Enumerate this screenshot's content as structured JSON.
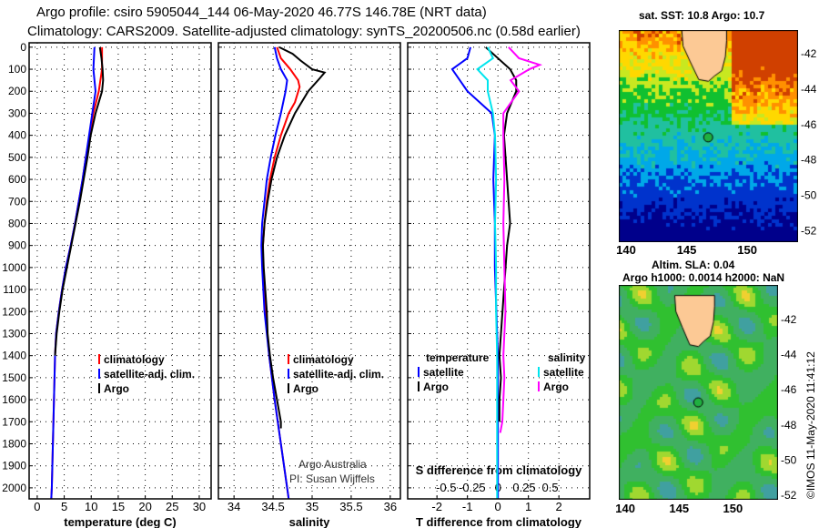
{
  "title_line1": "Argo profile: csiro 5905044_144 06-May-2020 46.77S 146.78E (NRT data)",
  "title_line2": "Climatology: CARS2009. Satellite-adjusted climatology: synTS_20200506.nc (0.58d earlier)",
  "credit_line1": "Argo Australia",
  "credit_line2": "PI: Susan Wijffels",
  "imos_stamp": "©IMOS 11-May-2020 11:41:12",
  "colors": {
    "climatology": "#ff0000",
    "satellite": "#0000ff",
    "argo": "#000000",
    "sal_satellite": "#00e5ee",
    "sal_argo": "#ff00ff",
    "land": "#fcc995"
  },
  "chart_data": [
    {
      "type": "line",
      "id": "temperature",
      "xlabel": "temperature (deg C)",
      "ylabel": "depth",
      "xlim": [
        -1.5,
        32.2
      ],
      "ylim": [
        2050,
        -20
      ],
      "xticks": [
        0,
        5,
        10,
        15,
        20,
        25,
        30
      ],
      "yticks": [
        0,
        100,
        200,
        300,
        400,
        500,
        600,
        700,
        800,
        900,
        1000,
        1100,
        1200,
        1300,
        1400,
        1500,
        1600,
        1700,
        1800,
        1900,
        2000
      ],
      "legend": [
        "climatology",
        "satellite-adj. clim.",
        "Argo"
      ],
      "series": [
        {
          "name": "climatology",
          "color": "#ff0000",
          "depth": [
            0,
            100,
            200,
            300,
            400,
            500,
            600,
            700,
            800,
            900,
            1000,
            1100,
            1200,
            1300,
            1400,
            1600,
            1800,
            2000,
            2050
          ],
          "values": [
            12,
            12,
            11.4,
            10.4,
            9.7,
            9.0,
            8.4,
            7.7,
            7.0,
            6.2,
            5.3,
            4.6,
            4.0,
            3.5,
            3.3,
            3.1,
            2.9,
            2.7,
            2.6
          ]
        },
        {
          "name": "satellite-adj. clim.",
          "color": "#0000ff",
          "depth": [
            0,
            100,
            150,
            200,
            300,
            400,
            500,
            600,
            700,
            800,
            900,
            1000,
            1100,
            1200,
            1300,
            1400,
            1600,
            1800,
            2000,
            2050
          ],
          "values": [
            10.6,
            10.4,
            10.6,
            10.8,
            10.2,
            9.6,
            9.0,
            8.4,
            7.7,
            7.0,
            6.2,
            5.3,
            4.6,
            4.0,
            3.5,
            3.3,
            3.1,
            2.9,
            2.7,
            2.6
          ]
        },
        {
          "name": "Argo",
          "color": "#000000",
          "depth": [
            0,
            50,
            100,
            150,
            200,
            250,
            300,
            400,
            500,
            600,
            700,
            800,
            900,
            1000,
            1100,
            1200,
            1300,
            1400
          ],
          "values": [
            11.6,
            11.9,
            12.1,
            12.2,
            12.0,
            11.4,
            10.8,
            9.9,
            9.3,
            8.6,
            7.9,
            7.1,
            6.3,
            5.5,
            4.7,
            4.1,
            3.6,
            3.3
          ]
        }
      ]
    },
    {
      "type": "line",
      "id": "salinity",
      "xlabel": "salinity",
      "ylabel": "depth",
      "xlim": [
        33.8,
        36.13
      ],
      "ylim": [
        2050,
        -20
      ],
      "xticks": [
        34,
        34.5,
        35,
        35.5,
        36
      ],
      "xticklabels": [
        "34",
        "34.5",
        "35",
        "35.5",
        "36"
      ],
      "legend": [
        "climatology",
        "satellite-adj. clim.",
        "Argo"
      ],
      "series": [
        {
          "name": "climatology",
          "color": "#ff0000",
          "depth": [
            0,
            50,
            100,
            150,
            180,
            250,
            300,
            400,
            500,
            600,
            700,
            800,
            900,
            1000,
            1200,
            1400,
            1600,
            1800,
            2000,
            2050
          ],
          "values": [
            34.55,
            34.6,
            34.72,
            34.82,
            34.84,
            34.78,
            34.7,
            34.6,
            34.52,
            34.46,
            34.42,
            34.39,
            34.37,
            34.37,
            34.4,
            34.45,
            34.52,
            34.6,
            34.68,
            34.7
          ]
        },
        {
          "name": "satellite-adj. clim.",
          "color": "#0000ff",
          "depth": [
            0,
            50,
            100,
            150,
            200,
            300,
            400,
            500,
            600,
            700,
            800,
            900,
            1000,
            1200,
            1400,
            1600,
            1800,
            2000,
            2050
          ],
          "values": [
            34.52,
            34.55,
            34.6,
            34.68,
            34.66,
            34.6,
            34.53,
            34.47,
            34.42,
            34.39,
            34.36,
            34.35,
            34.36,
            34.39,
            34.45,
            34.52,
            34.6,
            34.68,
            34.7
          ]
        },
        {
          "name": "Argo",
          "color": "#000000",
          "depth": [
            0,
            30,
            60,
            100,
            115,
            140,
            200,
            300,
            400,
            500,
            600,
            700,
            800,
            900,
            1000,
            1100,
            1200,
            1300,
            1400,
            1500,
            1600,
            1700,
            1730
          ],
          "values": [
            34.58,
            34.75,
            34.85,
            35.0,
            35.16,
            35.1,
            34.95,
            34.78,
            34.65,
            34.55,
            34.48,
            34.43,
            34.39,
            34.37,
            34.38,
            34.4,
            34.42,
            34.43,
            34.46,
            34.5,
            34.55,
            34.6,
            34.6
          ]
        }
      ]
    },
    {
      "type": "line",
      "id": "difference",
      "xlabel": "T difference from climatology",
      "x2label": "S difference from climatology",
      "xlim": [
        -2.96,
        3.01
      ],
      "ylim": [
        2050,
        -20
      ],
      "xticks": [
        -2,
        -1,
        0,
        1,
        2
      ],
      "x2lim": [
        -0.87,
        0.88
      ],
      "x2ticks": [
        -0.5,
        -0.25,
        0,
        0.25,
        0.5
      ],
      "x2ticklabels": [
        "-0.5",
        "-0.25",
        "0",
        "0.25",
        "0.5"
      ],
      "legend_temperature_title": "temperature",
      "legend_salinity_title": "salinity",
      "legend": [
        "satellite",
        "Argo",
        "satellite",
        "Argo"
      ],
      "series": [
        {
          "name": "T satellite",
          "axis": "T",
          "color": "#0000ff",
          "depth": [
            0,
            50,
            100,
            200,
            300,
            400,
            600,
            800,
            1000,
            1200,
            1400,
            1600,
            1800,
            2050
          ],
          "values": [
            -0.9,
            -1.0,
            -1.5,
            -1.0,
            -0.2,
            -0.1,
            -0.15,
            -0.1,
            -0.1,
            -0.05,
            0,
            0,
            0,
            0
          ]
        },
        {
          "name": "T Argo",
          "axis": "T",
          "color": "#000000",
          "depth": [
            0,
            50,
            100,
            150,
            200,
            300,
            400,
            500,
            600,
            700,
            800,
            900,
            1000,
            1100,
            1200,
            1300,
            1400,
            1500,
            1600,
            1700
          ],
          "values": [
            -0.4,
            0,
            0.4,
            0.6,
            0.6,
            0.3,
            0.2,
            0.25,
            0.3,
            0.35,
            0.4,
            0.3,
            0.25,
            0.2,
            0.15,
            0.1,
            0.05,
            0.1,
            0.05,
            0.05
          ]
        },
        {
          "name": "S satellite",
          "axis": "S",
          "color": "#00e5ee",
          "depth": [
            0,
            50,
            100,
            150,
            200,
            300,
            400,
            600,
            800,
            1000,
            1200,
            1400,
            1600,
            1800,
            2050
          ],
          "values": [
            -0.1,
            -0.05,
            -0.2,
            -0.1,
            -0.1,
            -0.05,
            -0.03,
            -0.02,
            -0.03,
            -0.02,
            -0.02,
            -0.01,
            -0.01,
            -0.01,
            -0.01
          ]
        },
        {
          "name": "S Argo",
          "axis": "S",
          "color": "#ff00ff",
          "depth": [
            0,
            50,
            80,
            100,
            150,
            200,
            300,
            400,
            600,
            800,
            1000,
            1200,
            1400,
            1500,
            1600,
            1700,
            1750
          ],
          "values": [
            0.1,
            0.2,
            0.4,
            0.3,
            0.12,
            0.2,
            0.05,
            0.05,
            0.06,
            0.05,
            0.06,
            0.07,
            0.05,
            0.06,
            0.05,
            0.04,
            0.02
          ]
        }
      ]
    }
  ],
  "maps": [
    {
      "id": "sst",
      "title": "sat. SST: 10.8 Argo: 10.7",
      "lonlim": [
        139.4,
        154.2
      ],
      "latlim": [
        -52.7,
        -40.7
      ],
      "xticks": [
        140,
        145,
        150
      ],
      "yticks": [
        -42,
        -44,
        -46,
        -48,
        -50,
        -52
      ]
    },
    {
      "id": "sla",
      "title1": "Altim. SLA: 0.04",
      "title2": "Argo h1000: 0.0014 h2000: NaN",
      "lonlim": [
        139.4,
        154.2
      ],
      "latlim": [
        -52.3,
        -40.1
      ],
      "xticks": [
        140,
        145,
        150
      ],
      "yticks": [
        -42,
        -44,
        -46,
        -48,
        -50,
        -52
      ]
    }
  ],
  "float_position": {
    "lon": 146.78,
    "lat": -46.77
  }
}
